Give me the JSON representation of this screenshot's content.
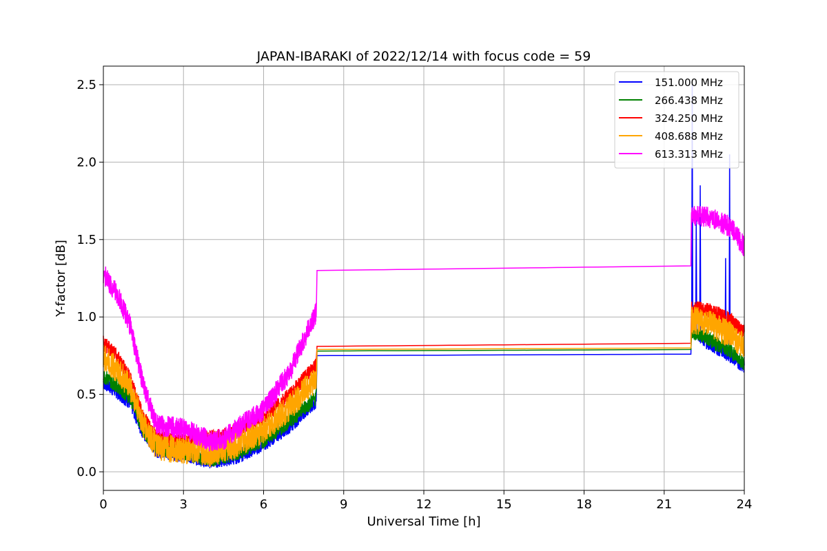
{
  "chart_data": {
    "type": "line",
    "title": "JAPAN-IBARAKI of 2022/12/14 with focus code = 59",
    "xlabel": "Universal Time [h]",
    "ylabel": "Y-factor [dB]",
    "xlim": [
      0,
      24
    ],
    "ylim": [
      -0.12,
      2.62
    ],
    "xticks": [
      0,
      3,
      6,
      9,
      12,
      15,
      18,
      21,
      24
    ],
    "yticks": [
      0.0,
      0.5,
      1.0,
      1.5,
      2.0,
      2.5
    ],
    "xtick_labels": [
      "0",
      "3",
      "6",
      "9",
      "12",
      "15",
      "18",
      "21",
      "24"
    ],
    "ytick_labels": [
      "0.0",
      "0.5",
      "1.0",
      "1.5",
      "2.0",
      "2.5"
    ],
    "grid": true,
    "legend_position": "top-right",
    "series": [
      {
        "name": "151.000 MHz",
        "color": "#0000ff",
        "noise": 0.05,
        "points": [
          [
            0,
            0.58
          ],
          [
            0.5,
            0.52
          ],
          [
            1,
            0.45
          ],
          [
            1.5,
            0.25
          ],
          [
            2,
            0.14
          ],
          [
            3,
            0.11
          ],
          [
            4,
            0.07
          ],
          [
            4.5,
            0.08
          ],
          [
            5,
            0.1
          ],
          [
            6,
            0.18
          ],
          [
            7,
            0.3
          ],
          [
            7.5,
            0.38
          ],
          [
            7.97,
            0.45
          ],
          [
            8,
            0.75
          ],
          [
            22,
            0.76
          ],
          [
            22.02,
            0.95
          ],
          [
            22.5,
            0.85
          ],
          [
            23,
            0.8
          ],
          [
            23.5,
            0.75
          ],
          [
            24,
            0.68
          ]
        ],
        "spikes": [
          [
            22.05,
            2.5
          ],
          [
            22.2,
            1.65
          ],
          [
            22.35,
            1.85
          ],
          [
            23.3,
            1.38
          ],
          [
            23.45,
            2.05
          ]
        ]
      },
      {
        "name": "266.438 MHz",
        "color": "#008000",
        "noise": 0.05,
        "points": [
          [
            0,
            0.62
          ],
          [
            0.5,
            0.56
          ],
          [
            1,
            0.48
          ],
          [
            1.5,
            0.27
          ],
          [
            2,
            0.15
          ],
          [
            3,
            0.12
          ],
          [
            4,
            0.08
          ],
          [
            4.5,
            0.1
          ],
          [
            5,
            0.12
          ],
          [
            6,
            0.2
          ],
          [
            7,
            0.33
          ],
          [
            7.5,
            0.41
          ],
          [
            7.97,
            0.48
          ],
          [
            8,
            0.78
          ],
          [
            22,
            0.79
          ],
          [
            22.02,
            0.9
          ],
          [
            22.5,
            0.88
          ],
          [
            23,
            0.82
          ],
          [
            23.5,
            0.78
          ],
          [
            24,
            0.7
          ]
        ]
      },
      {
        "name": "324.250 MHz",
        "color": "#ff0000",
        "noise": 0.05,
        "points": [
          [
            0,
            0.83
          ],
          [
            0.5,
            0.75
          ],
          [
            1,
            0.6
          ],
          [
            1.5,
            0.35
          ],
          [
            2,
            0.22
          ],
          [
            3,
            0.2
          ],
          [
            4,
            0.22
          ],
          [
            4.5,
            0.23
          ],
          [
            5,
            0.27
          ],
          [
            6,
            0.35
          ],
          [
            7,
            0.5
          ],
          [
            7.5,
            0.6
          ],
          [
            7.97,
            0.7
          ],
          [
            8,
            0.81
          ],
          [
            22,
            0.83
          ],
          [
            22.02,
            1.05
          ],
          [
            22.5,
            1.05
          ],
          [
            23,
            1.02
          ],
          [
            23.5,
            0.98
          ],
          [
            24,
            0.9
          ]
        ]
      },
      {
        "name": "408.688 MHz",
        "color": "#ffa500",
        "noise": 0.09,
        "points": [
          [
            0,
            0.74
          ],
          [
            0.5,
            0.66
          ],
          [
            1,
            0.55
          ],
          [
            1.5,
            0.3
          ],
          [
            2,
            0.16
          ],
          [
            3,
            0.14
          ],
          [
            4,
            0.12
          ],
          [
            4.5,
            0.14
          ],
          [
            5,
            0.18
          ],
          [
            6,
            0.27
          ],
          [
            7,
            0.42
          ],
          [
            7.5,
            0.52
          ],
          [
            7.97,
            0.6
          ],
          [
            8,
            0.79
          ],
          [
            22,
            0.8
          ],
          [
            22.02,
            0.98
          ],
          [
            22.5,
            0.97
          ],
          [
            23,
            0.93
          ],
          [
            23.5,
            0.88
          ],
          [
            24,
            0.82
          ]
        ]
      },
      {
        "name": "613.313 MHz",
        "color": "#ff00ff",
        "noise": 0.07,
        "points": [
          [
            0,
            1.28
          ],
          [
            0.5,
            1.15
          ],
          [
            1,
            0.95
          ],
          [
            1.5,
            0.55
          ],
          [
            2,
            0.3
          ],
          [
            3,
            0.28
          ],
          [
            4,
            0.2
          ],
          [
            4.5,
            0.21
          ],
          [
            5,
            0.28
          ],
          [
            6,
            0.4
          ],
          [
            7,
            0.65
          ],
          [
            7.5,
            0.85
          ],
          [
            7.97,
            1.03
          ],
          [
            8,
            1.3
          ],
          [
            22,
            1.33
          ],
          [
            22.02,
            1.65
          ],
          [
            22.5,
            1.65
          ],
          [
            23,
            1.62
          ],
          [
            23.5,
            1.58
          ],
          [
            24,
            1.45
          ]
        ]
      }
    ]
  }
}
